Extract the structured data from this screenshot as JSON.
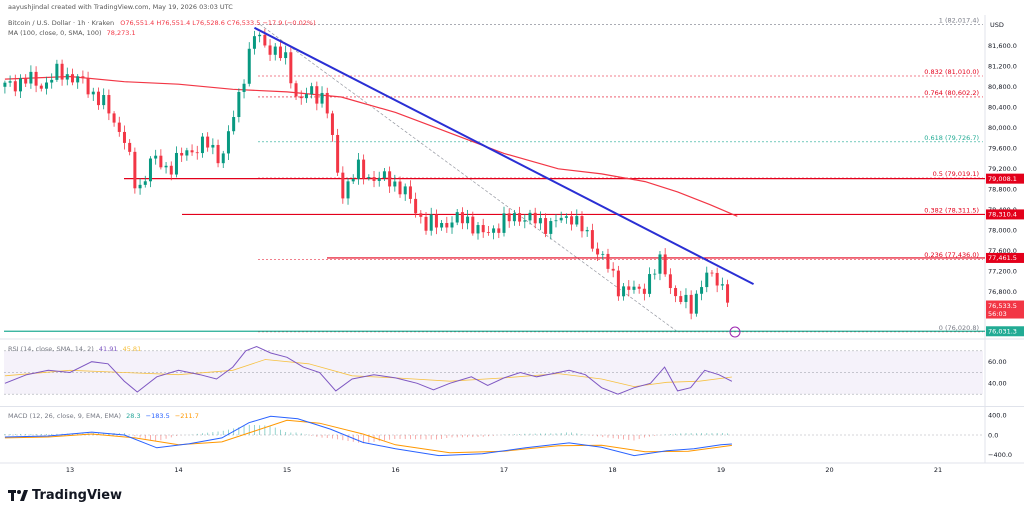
{
  "header": {
    "credit": "aayushjindal created with TradingView.com, May 19, 2026 03:03 UTC",
    "symbol": "Bitcoin / U.S. Dollar · 1h · Kraken",
    "ohlc": "O76,551.4 H76,551.4 L76,528.6 C76,533.5 −17.9 (−0.02%)",
    "ma": "MA (100, close, 0, SMA, 100)",
    "ma_value": "78,273.1",
    "currency": "USD"
  },
  "brand": "TradingView",
  "colors": {
    "up": "#089981",
    "down": "#f23645",
    "ma": "#f23645",
    "trendline": "#2a2fd4",
    "support": "#22ab94",
    "resistance": "#e3001b",
    "rsi": "#7e57c2",
    "macd": "#2962ff",
    "signal": "#ff9800"
  },
  "chart_data": [
    {
      "type": "candlestick",
      "title": "Bitcoin / U.S. Dollar · 1h · Kraken",
      "ylabel": "USD",
      "ylim": [
        75900,
        82200
      ],
      "x_ticks": [
        "13",
        "14",
        "15",
        "16",
        "17",
        "18",
        "19",
        "20",
        "21"
      ],
      "y_ticks": [
        "81,600.0",
        "81,200.0",
        "80,800.0",
        "80,400.0",
        "80,000.0",
        "79,600.0",
        "79,200.0",
        "78,800.0",
        "78,400.0",
        "78,000.0",
        "77,600.0",
        "77,200.0",
        "76,800.0",
        "76,400.0"
      ],
      "close_path": [
        [
          12.4,
          80800
        ],
        [
          12.6,
          80950
        ],
        [
          12.75,
          80820
        ],
        [
          12.9,
          81100
        ],
        [
          13.1,
          80900
        ],
        [
          13.3,
          80500
        ],
        [
          13.5,
          79800
        ],
        [
          13.62,
          78700
        ],
        [
          13.75,
          79400
        ],
        [
          13.9,
          79200
        ],
        [
          14.05,
          79500
        ],
        [
          14.25,
          79700
        ],
        [
          14.4,
          79400
        ],
        [
          14.52,
          80300
        ],
        [
          14.62,
          81200
        ],
        [
          14.7,
          81800
        ],
        [
          14.85,
          81550
        ],
        [
          15.0,
          81300
        ],
        [
          15.1,
          80500
        ],
        [
          15.22,
          80700
        ],
        [
          15.35,
          80600
        ],
        [
          15.5,
          78700
        ],
        [
          15.65,
          79200
        ],
        [
          15.8,
          79000
        ],
        [
          15.95,
          79000
        ],
        [
          16.1,
          78700
        ],
        [
          16.28,
          78100
        ],
        [
          16.5,
          78150
        ],
        [
          16.65,
          78250
        ],
        [
          16.8,
          77900
        ],
        [
          16.95,
          78100
        ],
        [
          17.12,
          78300
        ],
        [
          17.25,
          78200
        ],
        [
          17.42,
          78100
        ],
        [
          17.62,
          78300
        ],
        [
          17.9,
          77500
        ],
        [
          18.05,
          76900
        ],
        [
          18.25,
          76800
        ],
        [
          18.45,
          77400
        ],
        [
          18.58,
          76700
        ],
        [
          18.72,
          76500
        ],
        [
          18.85,
          77100
        ],
        [
          18.98,
          77050
        ],
        [
          19.1,
          76533.5
        ]
      ],
      "ma_label": "MA (100, close, 0, SMA, 100)",
      "ma_path": [
        [
          12.4,
          80950
        ],
        [
          13.0,
          81000
        ],
        [
          13.5,
          80900
        ],
        [
          14.0,
          80850
        ],
        [
          14.5,
          80750
        ],
        [
          15.0,
          80700
        ],
        [
          15.5,
          80600
        ],
        [
          16.0,
          80300
        ],
        [
          16.5,
          79900
        ],
        [
          17.0,
          79500
        ],
        [
          17.5,
          79200
        ],
        [
          17.9,
          79100
        ],
        [
          18.3,
          78950
        ],
        [
          18.6,
          78750
        ],
        [
          18.9,
          78500
        ],
        [
          19.15,
          78273.1
        ]
      ],
      "trendline": [
        [
          14.7,
          81950
        ],
        [
          19.3,
          76950
        ]
      ],
      "horizontal_levels": [
        {
          "label": "79,008.1",
          "value": 79008.1
        },
        {
          "label": "78,310.4",
          "value": 78310.4
        },
        {
          "label": "77,461.5",
          "value": 77461.5
        },
        {
          "label": "76,031.3",
          "value": 76031.3
        }
      ],
      "fibonacci": [
        {
          "label": "1 (82,017.4)",
          "value": 82017.4
        },
        {
          "label": "0.832 (81,010.0)",
          "value": 81010.0
        },
        {
          "label": "0.764 (80,602.2)",
          "value": 80602.2
        },
        {
          "label": "0.618 (79,726.7)",
          "value": 79726.7
        },
        {
          "label": "0.5 (79,019.1)",
          "value": 79019.1
        },
        {
          "label": "0.382 (78,311.5)",
          "value": 78311.5
        },
        {
          "label": "0.236 (77,436.0)",
          "value": 77436.0
        },
        {
          "label": "0 (76,020.8)",
          "value": 76020.8
        }
      ],
      "last_price": {
        "label": "76,533.5",
        "countdown": "56:03",
        "value": 76533.5
      }
    },
    {
      "type": "line",
      "title": "RSI (14, close, SMA, 14, 2)",
      "values_text": [
        "41.91",
        "45.81"
      ],
      "ylim": [
        20,
        80
      ],
      "y_ticks": [
        "60.00",
        "40.00"
      ],
      "band": [
        30,
        70
      ],
      "rsi_path": [
        [
          12.4,
          40
        ],
        [
          12.6,
          48
        ],
        [
          12.8,
          52
        ],
        [
          13.0,
          50
        ],
        [
          13.2,
          60
        ],
        [
          13.35,
          58
        ],
        [
          13.5,
          42
        ],
        [
          13.62,
          32
        ],
        [
          13.8,
          46
        ],
        [
          14.0,
          52
        ],
        [
          14.2,
          48
        ],
        [
          14.35,
          44
        ],
        [
          14.5,
          55
        ],
        [
          14.62,
          70
        ],
        [
          14.72,
          74
        ],
        [
          14.85,
          68
        ],
        [
          15.0,
          64
        ],
        [
          15.15,
          55
        ],
        [
          15.3,
          50
        ],
        [
          15.45,
          33
        ],
        [
          15.6,
          44
        ],
        [
          15.8,
          48
        ],
        [
          16.0,
          45
        ],
        [
          16.2,
          40
        ],
        [
          16.35,
          34
        ],
        [
          16.5,
          40
        ],
        [
          16.7,
          46
        ],
        [
          16.85,
          38
        ],
        [
          17.0,
          45
        ],
        [
          17.15,
          50
        ],
        [
          17.3,
          46
        ],
        [
          17.45,
          49
        ],
        [
          17.6,
          52
        ],
        [
          17.75,
          48
        ],
        [
          17.9,
          36
        ],
        [
          18.05,
          30
        ],
        [
          18.2,
          36
        ],
        [
          18.35,
          40
        ],
        [
          18.48,
          55
        ],
        [
          18.6,
          33
        ],
        [
          18.72,
          36
        ],
        [
          18.85,
          52
        ],
        [
          18.98,
          48
        ],
        [
          19.1,
          41.91
        ]
      ],
      "ma_path": [
        [
          12.4,
          47
        ],
        [
          13.0,
          52
        ],
        [
          13.5,
          50
        ],
        [
          14.0,
          48
        ],
        [
          14.5,
          52
        ],
        [
          14.8,
          62
        ],
        [
          15.2,
          58
        ],
        [
          15.6,
          47
        ],
        [
          16.0,
          45
        ],
        [
          16.5,
          42
        ],
        [
          17.0,
          45
        ],
        [
          17.5,
          49
        ],
        [
          17.9,
          44
        ],
        [
          18.2,
          37
        ],
        [
          18.5,
          41
        ],
        [
          18.8,
          42
        ],
        [
          19.1,
          45.81
        ]
      ]
    },
    {
      "type": "bar",
      "title": "MACD (12, 26, close, 9, EMA, EMA)",
      "values_text": [
        "28.3",
        "−183.5",
        "−211.7"
      ],
      "ylim": [
        -550,
        550
      ],
      "y_ticks": [
        "400.0",
        "0.0",
        "−400.0"
      ],
      "macd_path": [
        [
          12.4,
          -40
        ],
        [
          12.8,
          -20
        ],
        [
          13.2,
          60
        ],
        [
          13.5,
          0
        ],
        [
          13.8,
          -260
        ],
        [
          14.1,
          -180
        ],
        [
          14.4,
          -60
        ],
        [
          14.65,
          250
        ],
        [
          14.85,
          380
        ],
        [
          15.1,
          330
        ],
        [
          15.4,
          120
        ],
        [
          15.7,
          -150
        ],
        [
          16.0,
          -280
        ],
        [
          16.4,
          -420
        ],
        [
          16.8,
          -380
        ],
        [
          17.2,
          -260
        ],
        [
          17.6,
          -160
        ],
        [
          17.9,
          -250
        ],
        [
          18.2,
          -420
        ],
        [
          18.5,
          -320
        ],
        [
          18.75,
          -280
        ],
        [
          19.0,
          -200
        ],
        [
          19.1,
          -183.5
        ]
      ],
      "signal_path": [
        [
          12.4,
          -60
        ],
        [
          12.8,
          -40
        ],
        [
          13.2,
          20
        ],
        [
          13.6,
          -60
        ],
        [
          14.0,
          -200
        ],
        [
          14.4,
          -140
        ],
        [
          14.7,
          80
        ],
        [
          15.0,
          300
        ],
        [
          15.3,
          240
        ],
        [
          15.7,
          20
        ],
        [
          16.0,
          -200
        ],
        [
          16.5,
          -360
        ],
        [
          17.0,
          -330
        ],
        [
          17.5,
          -220
        ],
        [
          17.9,
          -210
        ],
        [
          18.3,
          -340
        ],
        [
          18.7,
          -330
        ],
        [
          19.1,
          -211.7
        ]
      ]
    }
  ]
}
